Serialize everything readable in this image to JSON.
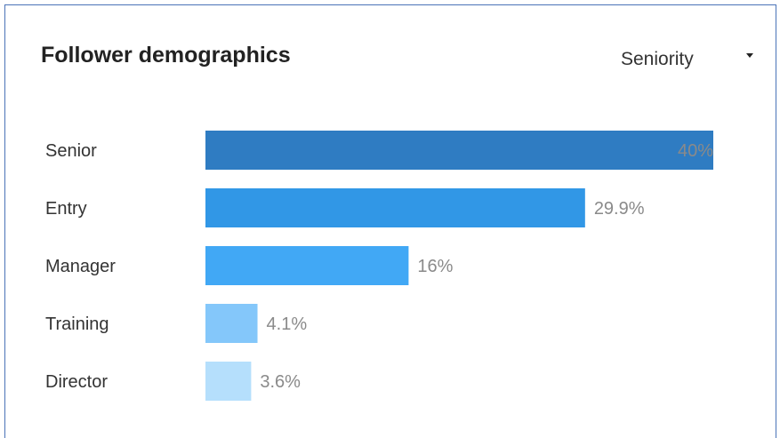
{
  "header": {
    "title": "Follower demographics",
    "dropdown_value": "Seniority"
  },
  "chart_data": {
    "type": "bar",
    "orientation": "horizontal",
    "categories": [
      "Senior",
      "Entry",
      "Manager",
      "Training",
      "Director"
    ],
    "values": [
      40,
      29.9,
      16,
      4.1,
      3.6
    ],
    "value_labels": [
      "40%",
      "29.9%",
      "16%",
      "4.1%",
      "3.6%"
    ],
    "colors": [
      "#2f7cc2",
      "#3197e6",
      "#41a8f5",
      "#84c7fa",
      "#b5dffc"
    ],
    "label_inside_first_bar_color": "#a9c8e6",
    "xlim": [
      0,
      40
    ],
    "grid": false,
    "title": "",
    "xlabel": "",
    "ylabel": ""
  }
}
